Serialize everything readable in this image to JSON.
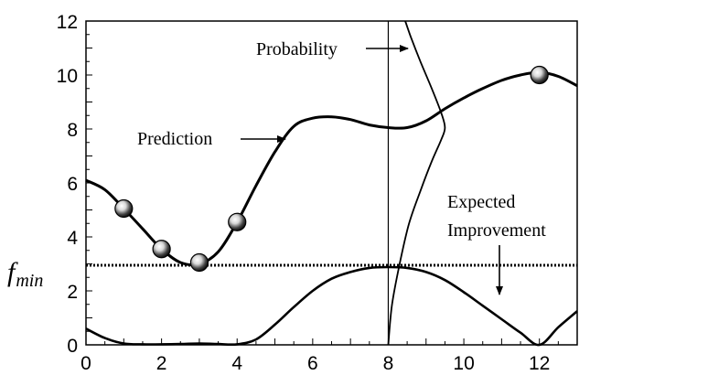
{
  "chart_data": {
    "type": "line",
    "xlim": [
      0,
      13
    ],
    "ylim": [
      0,
      12
    ],
    "x_ticks": [
      0,
      2,
      4,
      6,
      8,
      10,
      12
    ],
    "y_ticks": [
      0,
      2,
      4,
      6,
      8,
      10,
      12
    ],
    "grid": false,
    "fmin_label": "f",
    "fmin_sub": "min",
    "fmin_value": 2.95,
    "vertical_line_x": 8,
    "samples": [
      {
        "x": 1,
        "y": 5.05
      },
      {
        "x": 2,
        "y": 3.55
      },
      {
        "x": 3,
        "y": 3.05
      },
      {
        "x": 4,
        "y": 4.55
      },
      {
        "x": 12,
        "y": 10.0
      }
    ],
    "prediction": {
      "x": [
        0,
        0.5,
        1,
        1.5,
        2,
        2.5,
        3,
        3.5,
        4,
        4.5,
        5,
        5.5,
        6,
        6.5,
        7,
        7.5,
        8,
        8.5,
        9,
        9.5,
        10,
        10.5,
        11,
        11.5,
        12,
        12.5,
        13
      ],
      "y": [
        6.1,
        5.75,
        5.05,
        4.3,
        3.55,
        3.05,
        3.0,
        3.45,
        4.55,
        5.9,
        7.15,
        8.1,
        8.4,
        8.45,
        8.35,
        8.15,
        8.05,
        8.05,
        8.3,
        8.75,
        9.15,
        9.5,
        9.8,
        10.0,
        10.1,
        9.95,
        9.6
      ]
    },
    "expected_improvement": {
      "x": [
        0,
        0.5,
        1,
        1.5,
        2,
        2.5,
        3,
        3.5,
        4,
        4.5,
        5,
        5.5,
        6,
        6.5,
        7,
        7.5,
        8,
        8.5,
        9,
        9.5,
        10,
        10.5,
        11,
        11.5,
        12,
        12.5,
        13
      ],
      "y": [
        0.6,
        0.25,
        0.05,
        0.02,
        0.02,
        0.03,
        0.05,
        0.03,
        0.02,
        0.2,
        0.75,
        1.4,
        2.0,
        2.45,
        2.7,
        2.85,
        2.88,
        2.85,
        2.7,
        2.4,
        1.95,
        1.45,
        0.95,
        0.45,
        0.0,
        0.65,
        1.25
      ]
    },
    "probability": {
      "x": [
        8.0,
        8.1,
        8.3,
        8.55,
        8.85,
        9.15,
        9.4,
        9.5,
        9.4,
        9.15,
        8.85,
        8.6,
        8.45
      ],
      "y": [
        0.0,
        1.5,
        3.0,
        4.5,
        5.7,
        6.8,
        7.6,
        8.05,
        8.6,
        9.5,
        10.5,
        11.4,
        12.0
      ]
    },
    "annotations": [
      {
        "id": "probability",
        "text": "Probability"
      },
      {
        "id": "prediction",
        "text": "Prediction"
      },
      {
        "id": "ei_line1",
        "text": "Expected"
      },
      {
        "id": "ei_line2",
        "text": "Improvement"
      }
    ]
  }
}
